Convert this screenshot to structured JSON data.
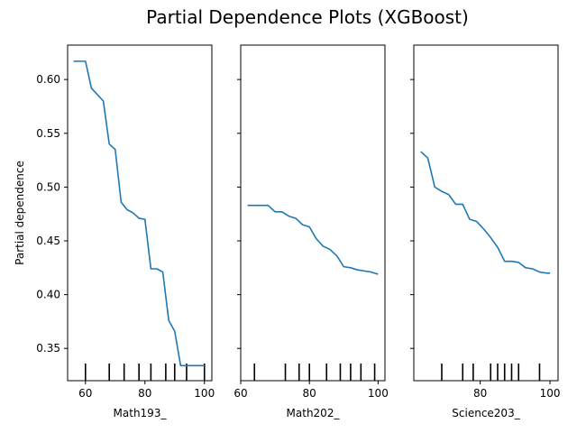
{
  "chart_data": {
    "type": "line",
    "title": "Partial Dependence Plots (XGBoost)",
    "ylabel": "Partial dependence",
    "ylim": [
      0.32,
      0.632
    ],
    "yticks": [
      0.35,
      0.4,
      0.45,
      0.5,
      0.55,
      0.6
    ],
    "ytick_labels": [
      "0.35",
      "0.40",
      "0.45",
      "0.50",
      "0.55",
      "0.60"
    ],
    "line_color": "#1f77b4",
    "sharey": true,
    "panels": [
      {
        "xlabel": "Math193_",
        "xlim": [
          54,
          102.5
        ],
        "xticks": [
          60,
          80,
          100
        ],
        "xtick_labels": [
          "60",
          "80",
          "100"
        ],
        "x": [
          56,
          60,
          62,
          66,
          68,
          70,
          72,
          74,
          76,
          78,
          80,
          82,
          84,
          86,
          88,
          90,
          92,
          94,
          96,
          98,
          100
        ],
        "y": [
          0.617,
          0.617,
          0.592,
          0.58,
          0.54,
          0.535,
          0.486,
          0.479,
          0.476,
          0.471,
          0.47,
          0.424,
          0.424,
          0.421,
          0.376,
          0.366,
          0.334,
          0.334,
          0.334,
          0.334,
          0.334
        ],
        "rug": [
          60,
          68,
          73,
          78,
          82,
          87,
          90,
          94,
          100
        ]
      },
      {
        "xlabel": "Math202_",
        "xlim": [
          60,
          102
        ],
        "xticks": [
          60,
          80,
          100
        ],
        "xtick_labels": [
          "60",
          "80",
          "100"
        ],
        "x": [
          62,
          64,
          66,
          68,
          70,
          72,
          74,
          76,
          78,
          80,
          82,
          84,
          86,
          88,
          90,
          92,
          94,
          96,
          98,
          100
        ],
        "y": [
          0.483,
          0.483,
          0.483,
          0.483,
          0.477,
          0.477,
          0.473,
          0.471,
          0.465,
          0.463,
          0.452,
          0.445,
          0.442,
          0.436,
          0.426,
          0.425,
          0.423,
          0.422,
          0.421,
          0.419
        ],
        "rug": [
          64,
          73,
          77,
          80,
          85,
          89,
          92,
          95,
          99
        ]
      },
      {
        "xlabel": "Science203_",
        "xlim": [
          61,
          102.3
        ],
        "xticks": [
          80,
          100
        ],
        "xtick_labels": [
          "80",
          "100"
        ],
        "x": [
          63,
          65,
          67,
          69,
          71,
          73,
          75,
          77,
          79,
          81,
          83,
          85,
          87,
          89,
          91,
          93,
          95,
          97,
          99,
          100
        ],
        "y": [
          0.533,
          0.527,
          0.5,
          0.496,
          0.493,
          0.484,
          0.484,
          0.47,
          0.468,
          0.461,
          0.453,
          0.444,
          0.431,
          0.431,
          0.43,
          0.425,
          0.424,
          0.421,
          0.42,
          0.42
        ],
        "rug": [
          69,
          75,
          78,
          83,
          85,
          87,
          89,
          91,
          97
        ]
      }
    ]
  }
}
